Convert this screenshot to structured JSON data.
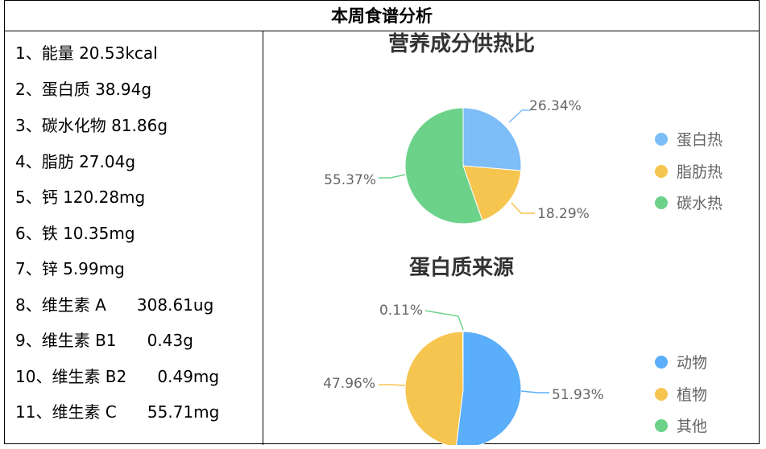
{
  "page_title": "本周食谱分析",
  "nutrients": [
    "1、能量 20.53kcal",
    "2、蛋白质 38.94g",
    "3、碳水化物 81.86g",
    "4、脂肪 27.04g",
    "5、钙 120.28mg",
    "6、铁 10.35mg",
    "7、锌 5.99mg",
    "8、维生素 A      308.61ug",
    "9、维生素 B1      0.43g",
    "10、维生素 B2      0.49mg",
    "11、维生素 C      55.71mg"
  ],
  "colors": {
    "blue": "#5AAEFA",
    "yellow": "#F6C54F",
    "green": "#6CD28A"
  },
  "chart_data": [
    {
      "type": "pie",
      "title": "营养成分供热比",
      "series": [
        {
          "name": "蛋白热",
          "value": 26.34,
          "label": "26.34%",
          "color": "#7DBDF8"
        },
        {
          "name": "脂肪热",
          "value": 18.29,
          "label": "18.29%",
          "color": "#F6C54F"
        },
        {
          "name": "碳水热",
          "value": 55.37,
          "label": "55.37%",
          "color": "#6CD28A"
        }
      ],
      "legend": "right"
    },
    {
      "type": "pie",
      "title": "蛋白质来源",
      "series": [
        {
          "name": "动物",
          "value": 51.93,
          "label": "51.93%",
          "color": "#5AAEFA"
        },
        {
          "name": "植物",
          "value": 47.96,
          "label": "47.96%",
          "color": "#F6C54F"
        },
        {
          "name": "其他",
          "value": 0.11,
          "label": "0.11%",
          "color": "#6CD28A"
        }
      ],
      "legend": "right"
    }
  ]
}
